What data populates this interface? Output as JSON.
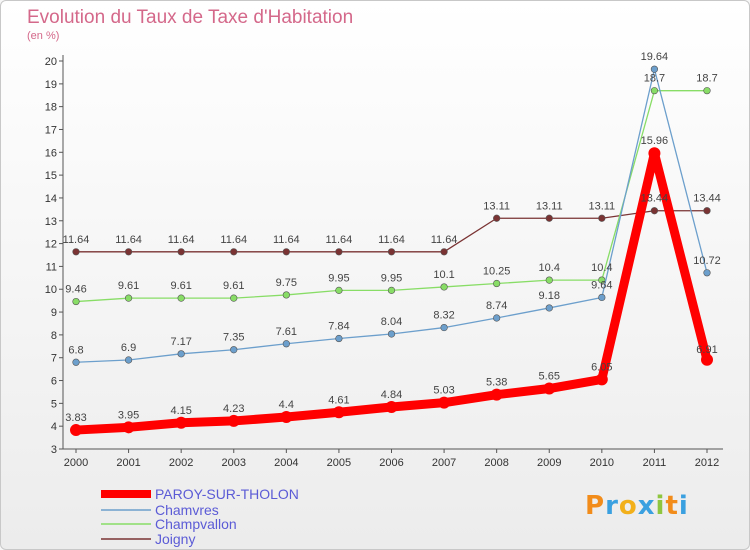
{
  "title": "Evolution du Taux de Taxe d'Habitation",
  "unit": "(en %)",
  "logo": "Proxiti",
  "chart_data": {
    "type": "line",
    "x": [
      "2000",
      "2001",
      "2002",
      "2003",
      "2004",
      "2005",
      "2006",
      "2007",
      "2008",
      "2009",
      "2010",
      "2011",
      "2012"
    ],
    "ylim": [
      3,
      20
    ],
    "yticks": [
      3,
      4,
      5,
      6,
      7,
      8,
      9,
      10,
      11,
      12,
      13,
      14,
      15,
      16,
      17,
      18,
      19,
      20
    ],
    "grid": false,
    "legend": "bottom-left",
    "series": [
      {
        "name": "PAROY-SUR-THOLON",
        "color": "#ff0000",
        "values": [
          3.83,
          3.95,
          4.15,
          4.23,
          4.4,
          4.61,
          4.84,
          5.03,
          5.38,
          5.65,
          6.05,
          15.96,
          6.91
        ],
        "labels": [
          "3.83",
          "3.95",
          "4.15",
          "4.23",
          "4.4",
          "4.61",
          "4.84",
          "5.03",
          "5.38",
          "5.65",
          "6.05",
          "15.96",
          "6.91"
        ]
      },
      {
        "name": "Chamvres",
        "color": "#6c9fcc",
        "values": [
          6.8,
          6.9,
          7.17,
          7.35,
          7.61,
          7.84,
          8.04,
          8.32,
          8.74,
          9.18,
          9.64,
          19.64,
          10.72
        ],
        "labels": [
          "6.8",
          "6.9",
          "7.17",
          "7.35",
          "7.61",
          "7.84",
          "8.04",
          "8.32",
          "8.74",
          "9.18",
          "9.64",
          "19.64",
          "10.72"
        ]
      },
      {
        "name": "Champvallon",
        "color": "#88dd66",
        "values": [
          9.46,
          9.61,
          9.61,
          9.61,
          9.75,
          9.95,
          9.95,
          10.1,
          10.25,
          10.4,
          10.4,
          18.7,
          18.7
        ],
        "labels": [
          "9.46",
          "9.61",
          "9.61",
          "9.61",
          "9.75",
          "9.95",
          "9.95",
          "10.1",
          "10.25",
          "10.4",
          "10.4",
          "18.7",
          "18.7"
        ]
      },
      {
        "name": "Joigny",
        "color": "#7a3333",
        "values": [
          11.64,
          11.64,
          11.64,
          11.64,
          11.64,
          11.64,
          11.64,
          11.64,
          13.11,
          13.11,
          13.11,
          13.44,
          13.44
        ],
        "labels": [
          "11.64",
          "11.64",
          "11.64",
          "11.64",
          "11.64",
          "11.64",
          "11.64",
          "11.64",
          "13.11",
          "13.11",
          "13.11",
          "13.44",
          "13.44"
        ]
      }
    ]
  }
}
